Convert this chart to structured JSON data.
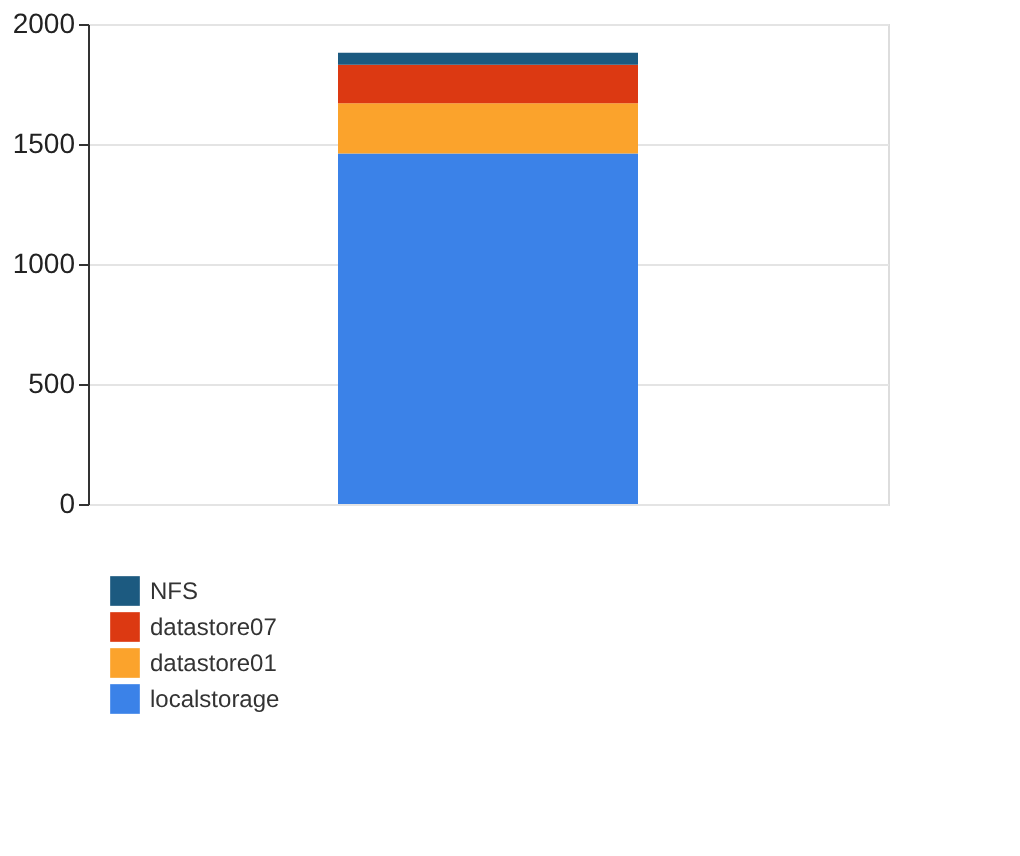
{
  "chart_data": {
    "type": "bar",
    "stacked": true,
    "categories": [
      null
    ],
    "series": [
      {
        "name": "localstorage",
        "color": "#3b82e8",
        "values": [
          1460
        ]
      },
      {
        "name": "datastore01",
        "color": "#fba32c",
        "values": [
          210
        ]
      },
      {
        "name": "datastore07",
        "color": "#dc3912",
        "values": [
          160
        ]
      },
      {
        "name": "NFS",
        "color": "#1c5a80",
        "values": [
          50
        ]
      }
    ],
    "ylim": [
      0,
      2000
    ],
    "yticks": [
      0,
      500,
      1000,
      1500,
      2000
    ],
    "grid": "y",
    "legend": "bottom left",
    "tick_labels": "y"
  }
}
